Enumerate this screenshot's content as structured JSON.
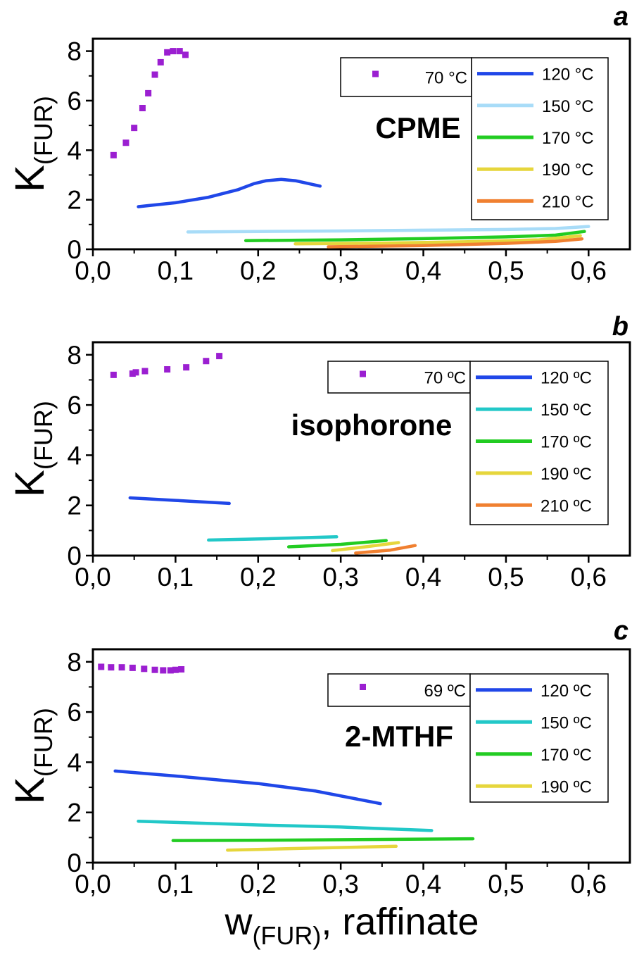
{
  "x_axis_label": {
    "main": "w",
    "sub": "(FUR)",
    "suffix": ", raffinate"
  },
  "chart_data": [
    {
      "type": "line",
      "panel_letter": "a",
      "solvent_label": "CPME",
      "ylabel": {
        "main": "K",
        "sub": "(FUR)"
      },
      "xlim": [
        0.0,
        0.65
      ],
      "ylim": [
        0,
        8.5
      ],
      "x_ticks": [
        0.0,
        0.1,
        0.2,
        0.3,
        0.4,
        0.5,
        0.6
      ],
      "x_tick_labels": [
        "0,0",
        "0,1",
        "0,2",
        "0,3",
        "0,4",
        "0,5",
        "0,6"
      ],
      "y_ticks": [
        0,
        2,
        4,
        6,
        8
      ],
      "y_tick_labels": [
        "0",
        "2",
        "4",
        "6",
        "8"
      ],
      "scatter_series": [
        {
          "name": "70 °C",
          "color": "#9b1fd1",
          "points": [
            [
              0.025,
              3.8
            ],
            [
              0.04,
              4.3
            ],
            [
              0.05,
              4.9
            ],
            [
              0.06,
              5.7
            ],
            [
              0.067,
              6.3
            ],
            [
              0.075,
              7.05
            ],
            [
              0.082,
              7.55
            ],
            [
              0.09,
              7.95
            ],
            [
              0.097,
              8.0
            ],
            [
              0.105,
              8.0
            ],
            [
              0.112,
              7.85
            ]
          ]
        }
      ],
      "line_series": [
        {
          "name": "120 °C",
          "color": "#2047e8",
          "points": [
            [
              0.055,
              1.72
            ],
            [
              0.1,
              1.88
            ],
            [
              0.14,
              2.1
            ],
            [
              0.175,
              2.4
            ],
            [
              0.195,
              2.65
            ],
            [
              0.21,
              2.77
            ],
            [
              0.228,
              2.82
            ],
            [
              0.245,
              2.77
            ],
            [
              0.275,
              2.55
            ]
          ]
        },
        {
          "name": "150 °C",
          "color": "#a8dcf8",
          "points": [
            [
              0.115,
              0.7
            ],
            [
              0.2,
              0.72
            ],
            [
              0.3,
              0.74
            ],
            [
              0.4,
              0.77
            ],
            [
              0.5,
              0.8
            ],
            [
              0.56,
              0.84
            ],
            [
              0.6,
              0.92
            ]
          ]
        },
        {
          "name": "170 °C",
          "color": "#22cc22",
          "points": [
            [
              0.185,
              0.35
            ],
            [
              0.3,
              0.38
            ],
            [
              0.4,
              0.43
            ],
            [
              0.5,
              0.5
            ],
            [
              0.56,
              0.57
            ],
            [
              0.595,
              0.72
            ]
          ]
        },
        {
          "name": "190 °C",
          "color": "#e6d63c",
          "points": [
            [
              0.245,
              0.22
            ],
            [
              0.35,
              0.25
            ],
            [
              0.45,
              0.3
            ],
            [
              0.54,
              0.38
            ],
            [
              0.59,
              0.55
            ]
          ]
        },
        {
          "name": "210 °C",
          "color": "#f08030",
          "points": [
            [
              0.285,
              0.1
            ],
            [
              0.4,
              0.15
            ],
            [
              0.5,
              0.24
            ],
            [
              0.56,
              0.32
            ],
            [
              0.592,
              0.42
            ]
          ]
        }
      ]
    },
    {
      "type": "line",
      "panel_letter": "b",
      "solvent_label": "isophorone",
      "ylabel": {
        "main": "K",
        "sub": "(FUR)"
      },
      "xlim": [
        0.0,
        0.65
      ],
      "ylim": [
        0,
        8.5
      ],
      "x_ticks": [
        0.0,
        0.1,
        0.2,
        0.3,
        0.4,
        0.5,
        0.6
      ],
      "x_tick_labels": [
        "0,0",
        "0,1",
        "0,2",
        "0,3",
        "0,4",
        "0,5",
        "0,6"
      ],
      "y_ticks": [
        0,
        2,
        4,
        6,
        8
      ],
      "y_tick_labels": [
        "0",
        "2",
        "4",
        "6",
        "8"
      ],
      "scatter_series": [
        {
          "name": "70 ºC",
          "color": "#9b1fd1",
          "points": [
            [
              0.025,
              7.2
            ],
            [
              0.048,
              7.25
            ],
            [
              0.052,
              7.3
            ],
            [
              0.063,
              7.35
            ],
            [
              0.09,
              7.42
            ],
            [
              0.113,
              7.5
            ],
            [
              0.137,
              7.75
            ],
            [
              0.153,
              7.95
            ]
          ]
        }
      ],
      "line_series": [
        {
          "name": "120 ºC",
          "color": "#2047e8",
          "points": [
            [
              0.045,
              2.3
            ],
            [
              0.1,
              2.2
            ],
            [
              0.165,
              2.08
            ]
          ]
        },
        {
          "name": "150 ºC",
          "color": "#22c8c8",
          "points": [
            [
              0.14,
              0.62
            ],
            [
              0.22,
              0.68
            ],
            [
              0.295,
              0.75
            ]
          ]
        },
        {
          "name": "170 ºC",
          "color": "#22cc22",
          "points": [
            [
              0.237,
              0.35
            ],
            [
              0.3,
              0.45
            ],
            [
              0.355,
              0.6
            ]
          ]
        },
        {
          "name": "190 ºC",
          "color": "#e6d63c",
          "points": [
            [
              0.29,
              0.2
            ],
            [
              0.33,
              0.35
            ],
            [
              0.37,
              0.52
            ]
          ]
        },
        {
          "name": "210 ºC",
          "color": "#f08030",
          "points": [
            [
              0.318,
              0.1
            ],
            [
              0.36,
              0.22
            ],
            [
              0.39,
              0.4
            ]
          ]
        }
      ]
    },
    {
      "type": "line",
      "panel_letter": "c",
      "solvent_label": "2-MTHF",
      "ylabel": {
        "main": "K",
        "sub": "(FUR)"
      },
      "xlim": [
        0.0,
        0.65
      ],
      "ylim": [
        0,
        8.5
      ],
      "x_ticks": [
        0.0,
        0.1,
        0.2,
        0.3,
        0.4,
        0.5,
        0.6
      ],
      "x_tick_labels": [
        "0,0",
        "0,1",
        "0,2",
        "0,3",
        "0,4",
        "0,5",
        "0,6"
      ],
      "y_ticks": [
        0,
        2,
        4,
        6,
        8
      ],
      "y_tick_labels": [
        "0",
        "2",
        "4",
        "6",
        "8"
      ],
      "scatter_series": [
        {
          "name": "69 ºC",
          "color": "#9b1fd1",
          "points": [
            [
              0.01,
              7.8
            ],
            [
              0.022,
              7.78
            ],
            [
              0.035,
              7.78
            ],
            [
              0.048,
              7.76
            ],
            [
              0.062,
              7.72
            ],
            [
              0.075,
              7.68
            ],
            [
              0.085,
              7.66
            ],
            [
              0.094,
              7.66
            ],
            [
              0.1,
              7.68
            ],
            [
              0.107,
              7.7
            ]
          ]
        }
      ],
      "line_series": [
        {
          "name": "120 ºC",
          "color": "#2047e8",
          "points": [
            [
              0.027,
              3.65
            ],
            [
              0.1,
              3.45
            ],
            [
              0.2,
              3.15
            ],
            [
              0.27,
              2.85
            ],
            [
              0.348,
              2.35
            ]
          ]
        },
        {
          "name": "150 ºC",
          "color": "#22c8c8",
          "points": [
            [
              0.055,
              1.65
            ],
            [
              0.2,
              1.5
            ],
            [
              0.3,
              1.42
            ],
            [
              0.41,
              1.28
            ]
          ]
        },
        {
          "name": "170 ºC",
          "color": "#22cc22",
          "points": [
            [
              0.097,
              0.88
            ],
            [
              0.25,
              0.9
            ],
            [
              0.46,
              0.95
            ]
          ]
        },
        {
          "name": "190 ºC",
          "color": "#e6d63c",
          "points": [
            [
              0.163,
              0.5
            ],
            [
              0.27,
              0.58
            ],
            [
              0.367,
              0.65
            ]
          ]
        }
      ]
    }
  ]
}
